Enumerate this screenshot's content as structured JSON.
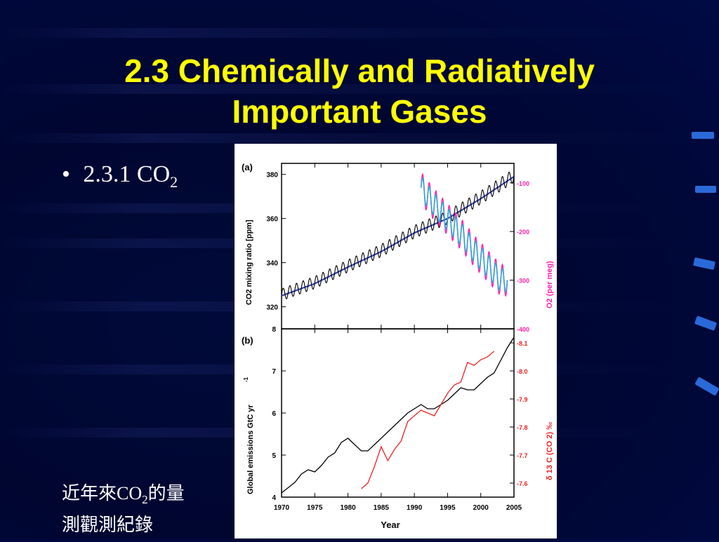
{
  "slide": {
    "title_line1": "2.3 Chemically and Radiatively",
    "title_line2": "Important Gases",
    "bullet_marker": "•",
    "bullet_text": "2.3.1 CO",
    "bullet_sub": "2",
    "caption_line1_a": "近年來CO",
    "caption_sub": "2",
    "caption_line1_b": "的量",
    "caption_line2": "測觀測紀錄"
  },
  "colors": {
    "title": "#ffff00",
    "background": "#000630",
    "accent": "#2a6ad8",
    "co2_black": "#000000",
    "co2_blue": "#3344aa",
    "o2_magenta": "#ff22aa",
    "o2_cyan": "#22aadd",
    "emissions": "#000000",
    "d13c_red": "#ee2222"
  },
  "chart_data": [
    {
      "type": "line",
      "panel": "(a)",
      "ylabel": "CO2 mixing ratio [ppm]",
      "y2label": "O2 (per meg)",
      "xlim": [
        1970,
        2005
      ],
      "ylim": [
        310,
        385
      ],
      "y2lim": [
        -400,
        -60
      ],
      "yticks": [
        "320",
        "340",
        "360",
        "380"
      ],
      "y2ticks": [
        "-100",
        "-200",
        "-300",
        "-400"
      ],
      "series": [
        {
          "x": [
            1970,
            1975,
            1980,
            1985,
            1990,
            1995,
            2000,
            2005
          ],
          "values": [
            325.5,
            331,
            338.5,
            345.5,
            354,
            360.5,
            369.5,
            379.5
          ]
        },
        {
          "x": [
            1991,
            1993,
            1995,
            1997,
            1999,
            2001,
            2003
          ],
          "values": [
            -110,
            -145,
            -175,
            -205,
            -240,
            -270,
            -300
          ],
          "axis": "right"
        }
      ]
    },
    {
      "type": "line",
      "panel": "(b)",
      "xlabel": "Year",
      "ylabel": "Global emissions GtC yr",
      "y2label": "δ 13 C (CO 2) ‰",
      "xlim": [
        1970,
        2005
      ],
      "ylim": [
        4,
        8
      ],
      "y2lim": [
        -7.55,
        -8.15
      ],
      "xticks": [
        "1970",
        "1975",
        "1980",
        "1985",
        "1990",
        "1995",
        "2000",
        "2005"
      ],
      "yticks": [
        "4",
        "5",
        "6",
        "7",
        "8"
      ],
      "y2ticks": [
        "-8.1",
        "-8.0",
        "-7.9",
        "-7.8",
        "-7.7",
        "-7.6"
      ],
      "series": [
        {
          "x": [
            1970,
            1972,
            1973,
            1974,
            1975,
            1976,
            1977,
            1978,
            1979,
            1980,
            1981,
            1982,
            1983,
            1984,
            1985,
            1986,
            1987,
            1988,
            1989,
            1990,
            1991,
            1992,
            1993,
            1994,
            1995,
            1996,
            1997,
            1998,
            1999,
            2000,
            2001,
            2002,
            2003,
            2004,
            2005
          ],
          "values": [
            4.1,
            4.35,
            4.55,
            4.65,
            4.6,
            4.75,
            4.95,
            5.05,
            5.3,
            5.4,
            5.25,
            5.1,
            5.1,
            5.25,
            5.4,
            5.55,
            5.7,
            5.85,
            6.0,
            6.1,
            6.2,
            6.1,
            6.1,
            6.2,
            6.3,
            6.45,
            6.6,
            6.55,
            6.55,
            6.7,
            6.85,
            6.95,
            7.25,
            7.55,
            7.8
          ]
        },
        {
          "x": [
            1982,
            1983,
            1984,
            1985,
            1986,
            1987,
            1988,
            1989,
            1990,
            1991,
            1992,
            1993,
            1994,
            1995,
            1996,
            1997,
            1998,
            1999,
            2000,
            2001,
            2002
          ],
          "values": [
            -7.58,
            -7.6,
            -7.66,
            -7.73,
            -7.68,
            -7.72,
            -7.75,
            -7.82,
            -7.84,
            -7.86,
            -7.85,
            -7.84,
            -7.88,
            -7.92,
            -7.95,
            -7.96,
            -8.03,
            -8.02,
            -8.04,
            -8.05,
            -8.07
          ],
          "axis": "right"
        }
      ]
    }
  ]
}
